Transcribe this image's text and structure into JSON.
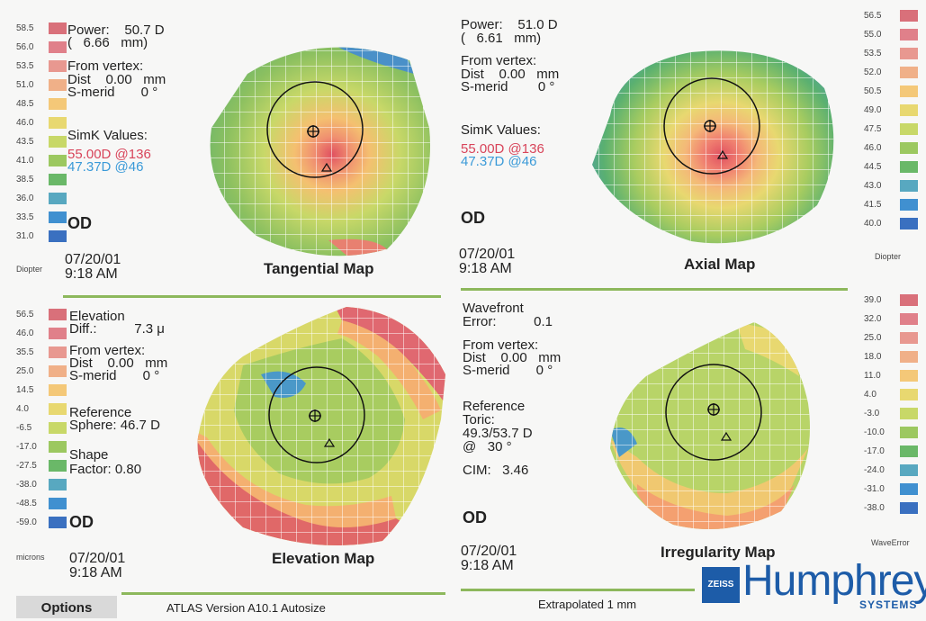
{
  "tangential": {
    "scale_labels": [
      "58.5",
      "56.0",
      "53.5",
      "51.0",
      "48.5",
      "46.0",
      "43.5",
      "41.0",
      "38.5",
      "36.0",
      "33.5",
      "31.0"
    ],
    "scale_colors": [
      "#d9707a",
      "#e0808a",
      "#e89890",
      "#f0b088",
      "#f4c878",
      "#e8d870",
      "#c8d868",
      "#9cc860",
      "#6ab868",
      "#58a8c0",
      "#4090d0",
      "#3a70c0"
    ],
    "unit": "Diopter",
    "power_line1": "Power:    50.7 D",
    "power_line2": "(   6.66   mm)",
    "vertex_line1": "From vertex:",
    "vertex_line2": "Dist    0.00   mm",
    "vertex_line3": "S-merid       0 °",
    "simk_label": "SimK Values:",
    "simk_red": "55.00D @136",
    "simk_blue": "47.37D @46",
    "eye": "OD",
    "date": "07/20/01",
    "time": "9:18 AM",
    "title": "Tangential Map"
  },
  "axial": {
    "scale_labels": [
      "56.5",
      "55.0",
      "53.5",
      "52.0",
      "50.5",
      "49.0",
      "47.5",
      "46.0",
      "44.5",
      "43.0",
      "41.5",
      "40.0"
    ],
    "scale_colors": [
      "#d9707a",
      "#e0808a",
      "#e89890",
      "#f0b088",
      "#f4c878",
      "#e8d870",
      "#c8d868",
      "#9cc860",
      "#6ab868",
      "#58a8c0",
      "#4090d0",
      "#3a70c0"
    ],
    "unit": "Diopter",
    "power_line1": "Power:    51.0 D",
    "power_line2": "(   6.61   mm)",
    "vertex_line1": "From vertex:",
    "vertex_line2": "Dist    0.00   mm",
    "vertex_line3": "S-merid        0 °",
    "simk_label": "SimK Values:",
    "simk_red": "55.00D @136",
    "simk_blue": "47.37D @46",
    "eye": "OD",
    "date": "07/20/01",
    "time": "9:18 AM",
    "title": "Axial Map"
  },
  "elevation": {
    "scale_labels": [
      "56.5",
      "46.0",
      "35.5",
      "25.0",
      "14.5",
      "4.0",
      "-6.5",
      "-17.0",
      "-27.5",
      "-38.0",
      "-48.5",
      "-59.0"
    ],
    "scale_colors": [
      "#d9707a",
      "#e0808a",
      "#e89890",
      "#f0b088",
      "#f4c878",
      "#e8d870",
      "#c8d868",
      "#9cc860",
      "#6ab868",
      "#58a8c0",
      "#4090d0",
      "#3a70c0"
    ],
    "unit": "microns",
    "line1": "Elevation",
    "line2": "Diff.:          7.3 μ",
    "vertex_line1": "From vertex:",
    "vertex_line2": "Dist    0.00   mm",
    "vertex_line3": "S-merid       0 °",
    "ref_line1": "Reference",
    "ref_line2": "Sphere: 46.7 D",
    "shape_line1": "Shape",
    "shape_line2": "Factor: 0.80",
    "eye": "OD",
    "date": "07/20/01",
    "time": "9:18 AM",
    "title": "Elevation Map"
  },
  "irregularity": {
    "scale_labels": [
      "39.0",
      "32.0",
      "25.0",
      "18.0",
      "11.0",
      "4.0",
      "-3.0",
      "-10.0",
      "-17.0",
      "-24.0",
      "-31.0",
      "-38.0"
    ],
    "scale_colors": [
      "#d9707a",
      "#e0808a",
      "#e89890",
      "#f0b088",
      "#f4c878",
      "#e8d870",
      "#c8d868",
      "#9cc860",
      "#6ab868",
      "#58a8c0",
      "#4090d0",
      "#3a70c0"
    ],
    "unit": "WaveError",
    "line1": "Wavefront",
    "line2": "Error:          0.1",
    "vertex_line1": "From vertex:",
    "vertex_line2": "Dist    0.00   mm",
    "vertex_line3": "S-merid       0 °",
    "ref_line1": "Reference",
    "ref_line2": "Toric:",
    "ref_line3": "49.3/53.7 D",
    "ref_line4": "@   30 °",
    "cim": "CIM:   3.46",
    "eye": "OD",
    "date": "07/20/01",
    "time": "9:18 AM",
    "title": "Irregularity Map"
  },
  "footer": {
    "options_label": "Options",
    "version": "ATLAS  Version A10.1  Autosize",
    "extrapolated": "Extrapolated 1 mm"
  },
  "logo": {
    "badge": "ZEISS",
    "name": "Humphrey",
    "sub": "SYSTEMS"
  }
}
